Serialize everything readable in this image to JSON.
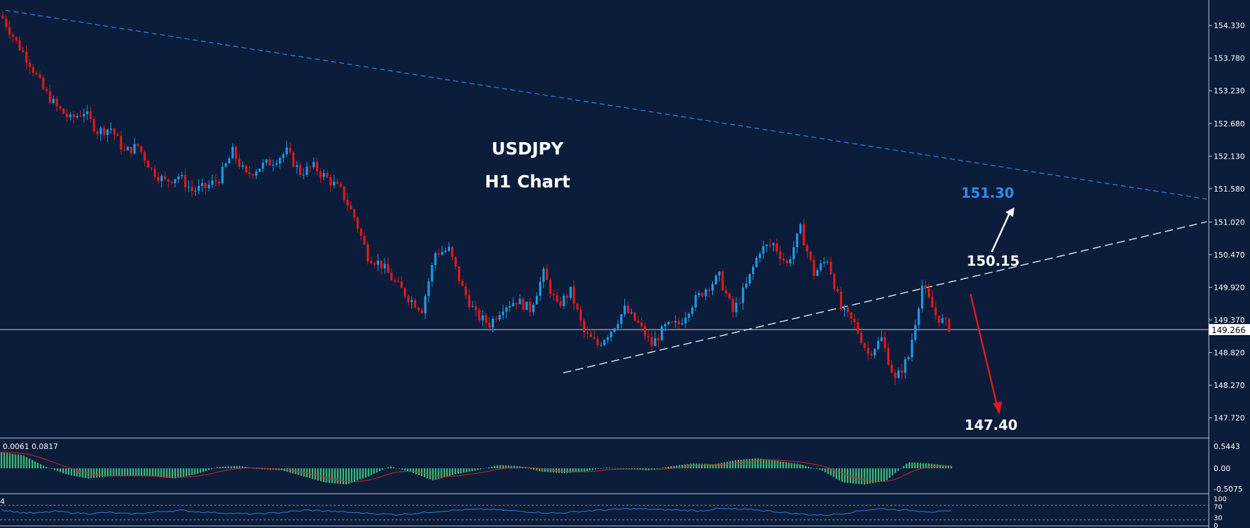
{
  "chart_data": [
    {
      "type": "candlestick",
      "title": "USDJPY",
      "subtitle": "H1 Chart",
      "ylim": [
        147.45,
        154.62
      ],
      "y_ticks": [
        "154.330",
        "153.780",
        "153.230",
        "152.680",
        "152.130",
        "151.580",
        "151.020",
        "150.470",
        "149.920",
        "149.370",
        "148.820",
        "148.270",
        "147.720"
      ],
      "current_price": "149.266",
      "x": [
        0,
        4,
        8,
        12,
        16,
        20,
        24,
        28,
        32,
        36,
        40,
        44,
        48,
        52,
        56,
        60,
        64,
        68,
        72,
        76,
        80,
        84,
        88,
        92,
        96,
        100,
        104,
        108,
        112,
        116,
        120,
        124,
        128,
        132,
        136,
        140,
        144,
        148,
        152,
        156,
        160,
        164,
        168,
        172,
        176,
        180,
        184,
        188,
        192,
        196,
        200,
        204,
        208,
        212,
        216,
        220,
        224,
        228,
        232,
        236,
        240,
        244,
        248,
        252,
        256,
        260,
        264,
        268,
        272,
        276,
        280
      ],
      "close": [
        154.45,
        154.05,
        153.7,
        153.25,
        152.95,
        152.75,
        152.88,
        152.55,
        152.6,
        152.2,
        152.3,
        151.9,
        151.7,
        151.8,
        151.55,
        151.6,
        151.75,
        152.2,
        151.8,
        151.95,
        152.05,
        152.2,
        151.85,
        151.95,
        151.75,
        151.55,
        151.1,
        150.45,
        150.3,
        150.0,
        149.75,
        149.55,
        150.5,
        150.55,
        149.9,
        149.45,
        149.3,
        149.6,
        149.7,
        149.55,
        150.15,
        149.6,
        149.85,
        149.15,
        148.95,
        149.2,
        149.55,
        149.3,
        148.95,
        149.25,
        149.3,
        149.65,
        149.9,
        150.1,
        149.5,
        149.95,
        150.55,
        150.65,
        150.3,
        150.9,
        150.15,
        150.4,
        149.55,
        149.3,
        148.8,
        149.05,
        148.35,
        148.75,
        149.95,
        149.45,
        149.25
      ],
      "annotations": [
        {
          "label": "151.30",
          "color": "#2d8cf0"
        },
        {
          "label": "150.15",
          "color": "#ffffff"
        },
        {
          "label": "147.40",
          "color": "#ffffff"
        }
      ],
      "colors": {
        "up": "#1e9be8",
        "down": "#e01a1a",
        "resistance": "#2a7fe0"
      }
    },
    {
      "type": "histogram",
      "label": "0.0061 0.0817",
      "ylim": [
        -0.5075,
        0.5443
      ],
      "y_ticks": [
        "0.5443",
        "0.00",
        "-0.5075"
      ],
      "values": [
        0.4,
        0.32,
        0.05,
        -0.15,
        -0.25,
        -0.2,
        -0.18,
        -0.2,
        -0.25,
        -0.15,
        0.03,
        0.06,
        -0.02,
        -0.05,
        -0.2,
        -0.35,
        -0.4,
        -0.2,
        0.05,
        -0.1,
        -0.3,
        -0.15,
        -0.05,
        0.08,
        0.05,
        -0.08,
        -0.12,
        -0.08,
        0.02,
        -0.02,
        -0.05,
        0.05,
        0.12,
        0.1,
        0.2,
        0.25,
        0.18,
        0.1,
        -0.05,
        -0.35,
        -0.4,
        -0.3,
        0.15,
        0.12,
        0.05
      ],
      "colors": {
        "bar": "#3ec27a",
        "signal": "#d8261e"
      }
    },
    {
      "type": "line",
      "label": "4",
      "ylim": [
        0,
        100
      ],
      "y_ticks": [
        "100",
        "70",
        "30",
        "0"
      ],
      "values": [
        58,
        48,
        45,
        52,
        46,
        44,
        48,
        42,
        45,
        52,
        55,
        50,
        47,
        44,
        42,
        45,
        50,
        56,
        54,
        50,
        46,
        43,
        40,
        44,
        50,
        55,
        58,
        60,
        56,
        52,
        48,
        45,
        50,
        55,
        58,
        62,
        60,
        58,
        56,
        54,
        62,
        60,
        58,
        52,
        45,
        40,
        38,
        44,
        55,
        62,
        58,
        55,
        50,
        52
      ],
      "colors": {
        "line": "#3a78d8"
      }
    }
  ]
}
